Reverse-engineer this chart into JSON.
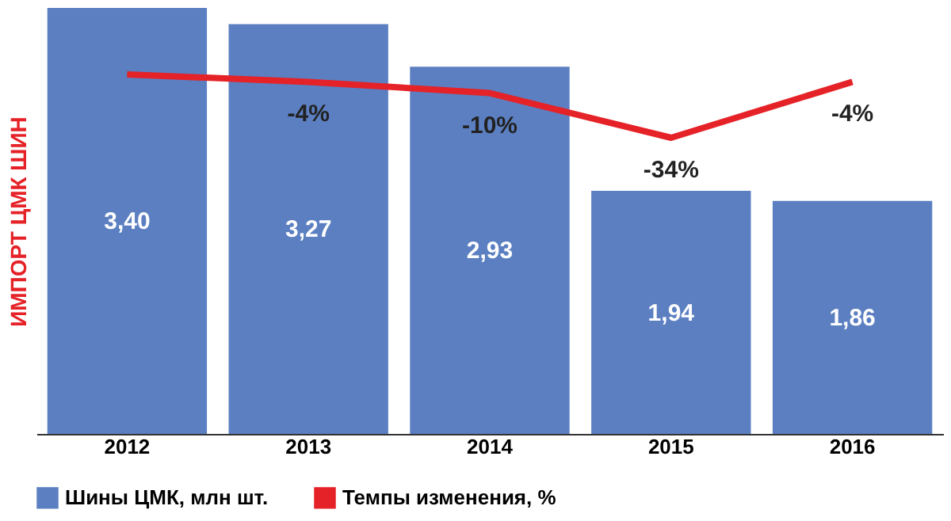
{
  "chart_data": {
    "type": "bar",
    "ylabel": "ИМПОРТ ЦМК ШИН",
    "categories": [
      "2012",
      "2013",
      "2014",
      "2015",
      "2016"
    ],
    "data_labels": true,
    "legend": "bottom",
    "series": [
      {
        "name": "Шины ЦМК, млн шт.",
        "color": "#5b7fc1",
        "values": [
          3.4,
          3.27,
          2.93,
          1.94,
          1.86
        ],
        "value_labels": [
          "3,40",
          "3,27",
          "2,93",
          "1,94",
          "1,86"
        ]
      },
      {
        "name": "Темпы изменения, %",
        "type": "line",
        "axis": "y2",
        "color": "#e52228",
        "marker": "none",
        "line_style": "solid",
        "values": [
          0,
          -4,
          -10,
          -34,
          -4
        ],
        "value_labels": [
          null,
          "-4%",
          "-10%",
          "-34%",
          "-4%"
        ]
      }
    ]
  }
}
